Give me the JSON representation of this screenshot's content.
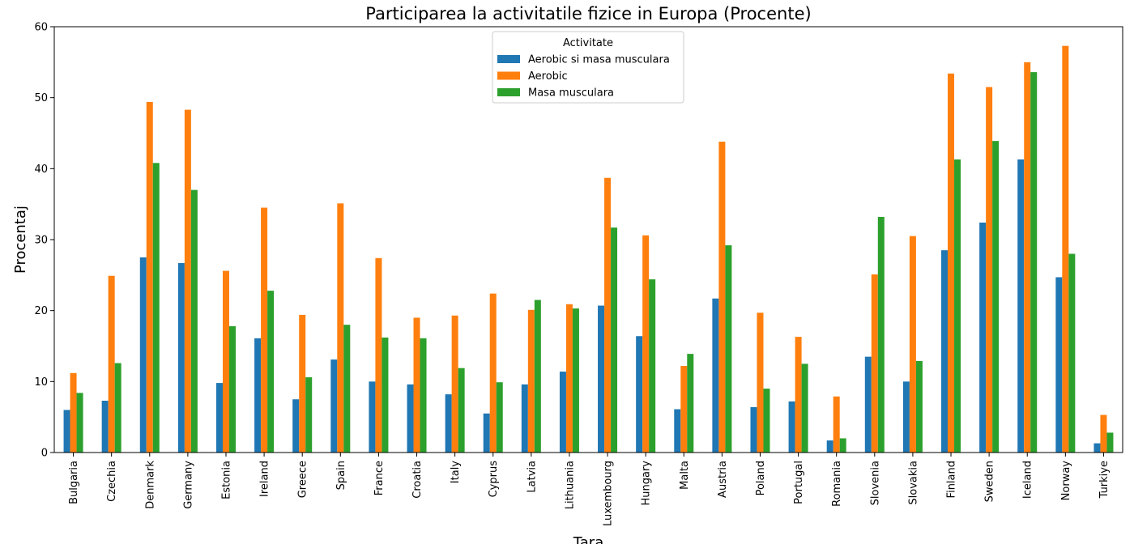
{
  "chart_data": {
    "type": "bar",
    "title": "Participarea la activitatile fizice in Europa (Procente)",
    "xlabel": "Tara",
    "ylabel": "Procentaj",
    "ylim": [
      0,
      60
    ],
    "yticks": [
      0,
      10,
      20,
      30,
      40,
      50,
      60
    ],
    "grid": false,
    "legend": {
      "title": "Activitate",
      "placement": "top-center"
    },
    "categories": [
      "Bulgaria",
      "Czechia",
      "Denmark",
      "Germany",
      "Estonia",
      "Ireland",
      "Greece",
      "Spain",
      "France",
      "Croatia",
      "Italy",
      "Cyprus",
      "Latvia",
      "Lithuania",
      "Luxembourg",
      "Hungary",
      "Malta",
      "Austria",
      "Poland",
      "Portugal",
      "Romania",
      "Slovenia",
      "Slovakia",
      "Finland",
      "Sweden",
      "Iceland",
      "Norway",
      "Turkiye"
    ],
    "series": [
      {
        "name": "Aerobic si masa musculara",
        "color": "#1f77b4",
        "values": [
          6.0,
          7.3,
          27.5,
          26.7,
          9.8,
          16.1,
          7.5,
          13.1,
          10.0,
          9.6,
          8.2,
          5.5,
          9.6,
          11.4,
          20.7,
          16.4,
          6.1,
          21.7,
          6.4,
          7.2,
          1.7,
          13.5,
          10.0,
          28.5,
          32.4,
          41.3,
          24.7,
          1.3
        ]
      },
      {
        "name": "Aerobic",
        "color": "#ff7f0e",
        "values": [
          11.2,
          24.9,
          49.4,
          48.3,
          25.6,
          34.5,
          19.4,
          35.1,
          27.4,
          19.0,
          19.3,
          22.4,
          20.1,
          20.9,
          38.7,
          30.6,
          12.2,
          43.8,
          19.7,
          16.3,
          7.9,
          25.1,
          30.5,
          53.4,
          51.5,
          55.0,
          57.3,
          5.3
        ]
      },
      {
        "name": "Masa musculara",
        "color": "#2ca02c",
        "values": [
          8.4,
          12.6,
          40.8,
          37.0,
          17.8,
          22.8,
          10.6,
          18.0,
          16.2,
          16.1,
          11.9,
          9.9,
          21.5,
          20.3,
          31.7,
          24.4,
          13.9,
          29.2,
          9.0,
          12.5,
          2.0,
          33.2,
          12.9,
          41.3,
          43.9,
          53.6,
          28.0,
          2.8
        ]
      }
    ]
  }
}
